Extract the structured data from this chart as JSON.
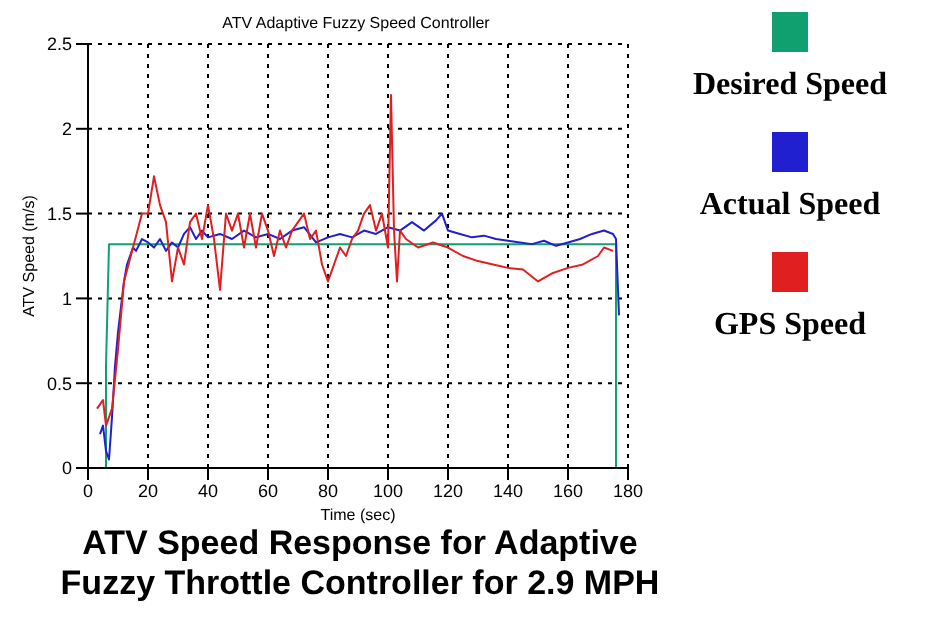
{
  "chart_data": {
    "type": "line",
    "title": "ATV Adaptive Fuzzy Speed Controller",
    "xlabel": "Time (sec)",
    "ylabel": "ATV Speed (m/s)",
    "annotations": [
      "ATV Speed Response for Adaptive Fuzzy Throttle Controller for 2.9 MPH"
    ],
    "xlim": [
      0,
      180
    ],
    "xticks": [
      0,
      20,
      40,
      60,
      80,
      100,
      120,
      140,
      160,
      180
    ],
    "ylim": [
      0,
      2.5
    ],
    "yticks": [
      0,
      0.5,
      1,
      1.5,
      2,
      2.5
    ],
    "grid": true,
    "legend": "right",
    "marker": "none",
    "line_style": "solid",
    "series": [
      {
        "name": "Desired Speed",
        "color": "#10a070",
        "x": [
          6,
          6,
          7,
          176,
          176
        ],
        "values": [
          0,
          0.6,
          1.32,
          1.32,
          0
        ]
      },
      {
        "name": "Actual Speed",
        "color": "#2020d0",
        "x": [
          4,
          5,
          6,
          7,
          8,
          9,
          10,
          11,
          12,
          13,
          14,
          15,
          16,
          18,
          20,
          22,
          24,
          26,
          28,
          30,
          32,
          34,
          36,
          38,
          40,
          44,
          48,
          52,
          56,
          60,
          64,
          68,
          72,
          76,
          80,
          84,
          88,
          92,
          96,
          100,
          104,
          108,
          112,
          116,
          118,
          120,
          124,
          128,
          132,
          136,
          140,
          144,
          148,
          152,
          156,
          160,
          164,
          168,
          172,
          175,
          176,
          177
        ],
        "values": [
          0.2,
          0.25,
          0.1,
          0.05,
          0.3,
          0.6,
          0.8,
          0.95,
          1.1,
          1.2,
          1.25,
          1.3,
          1.28,
          1.35,
          1.33,
          1.3,
          1.35,
          1.28,
          1.33,
          1.3,
          1.38,
          1.42,
          1.35,
          1.4,
          1.36,
          1.38,
          1.35,
          1.4,
          1.36,
          1.38,
          1.35,
          1.4,
          1.42,
          1.33,
          1.36,
          1.38,
          1.36,
          1.4,
          1.38,
          1.42,
          1.4,
          1.45,
          1.4,
          1.46,
          1.5,
          1.4,
          1.38,
          1.36,
          1.37,
          1.35,
          1.34,
          1.33,
          1.32,
          1.34,
          1.31,
          1.33,
          1.35,
          1.38,
          1.4,
          1.38,
          1.35,
          0.9
        ]
      },
      {
        "name": "GPS Speed",
        "color": "#e02020",
        "x": [
          3,
          5,
          6,
          8,
          10,
          12,
          15,
          18,
          20,
          22,
          24,
          26,
          28,
          30,
          32,
          34,
          36,
          38,
          40,
          42,
          44,
          46,
          48,
          50,
          52,
          54,
          56,
          58,
          60,
          62,
          64,
          66,
          68,
          70,
          72,
          74,
          76,
          78,
          80,
          82,
          84,
          86,
          88,
          90,
          92,
          94,
          96,
          98,
          100,
          101,
          102,
          103,
          104,
          106,
          110,
          115,
          120,
          125,
          130,
          135,
          140,
          145,
          150,
          155,
          160,
          165,
          170,
          172,
          175
        ],
        "values": [
          0.35,
          0.4,
          0.25,
          0.35,
          0.7,
          1.1,
          1.3,
          1.5,
          1.5,
          1.72,
          1.55,
          1.45,
          1.1,
          1.3,
          1.2,
          1.45,
          1.5,
          1.35,
          1.55,
          1.35,
          1.05,
          1.5,
          1.4,
          1.5,
          1.3,
          1.5,
          1.3,
          1.5,
          1.4,
          1.25,
          1.4,
          1.3,
          1.4,
          1.45,
          1.5,
          1.35,
          1.4,
          1.2,
          1.1,
          1.2,
          1.3,
          1.25,
          1.35,
          1.4,
          1.5,
          1.55,
          1.4,
          1.5,
          1.3,
          2.2,
          1.4,
          1.1,
          1.4,
          1.35,
          1.3,
          1.33,
          1.3,
          1.25,
          1.22,
          1.2,
          1.18,
          1.17,
          1.1,
          1.15,
          1.18,
          1.2,
          1.25,
          1.3,
          1.28
        ]
      }
    ]
  }
}
